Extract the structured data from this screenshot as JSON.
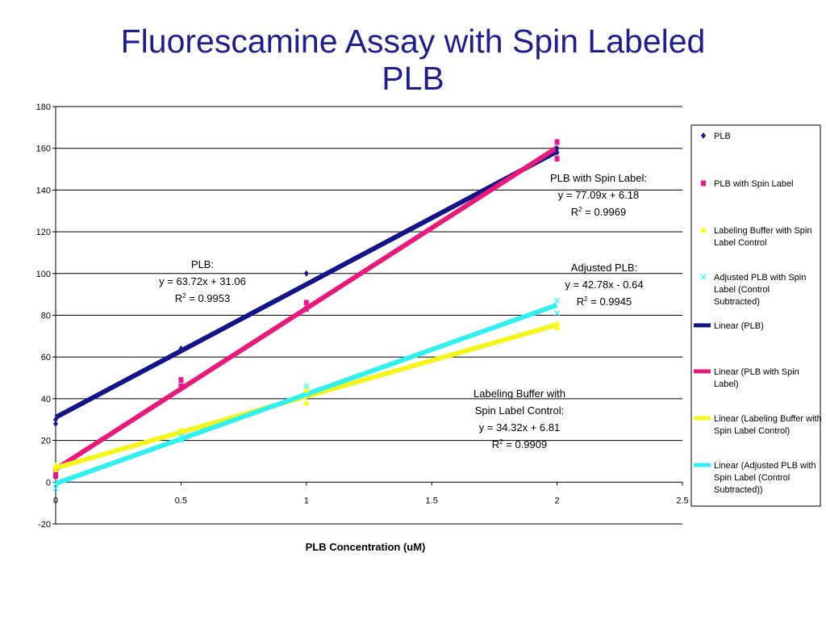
{
  "chart_data": {
    "type": "scatter",
    "title_line1": "Fluorescamine Assay with Spin Labeled",
    "title_line2": "PLB",
    "xlabel": "PLB Concentration (uM)",
    "ylabel": "",
    "xlim": [
      0,
      2.5
    ],
    "ylim": [
      -20,
      180
    ],
    "x_ticks": [
      "0",
      "0.5",
      "1",
      "1.5",
      "2",
      "2.5"
    ],
    "y_ticks": [
      "-20",
      "0",
      "20",
      "40",
      "60",
      "80",
      "100",
      "120",
      "140",
      "160",
      "180"
    ],
    "grid": "horizontal",
    "legend_position": "right",
    "series": [
      {
        "name": "PLB",
        "color": "#1a1a8c",
        "marker": "diamond",
        "points": [
          [
            0,
            28
          ],
          [
            0,
            30
          ],
          [
            0.5,
            64
          ],
          [
            1,
            100
          ],
          [
            2,
            158
          ],
          [
            2,
            160
          ]
        ]
      },
      {
        "name": "PLB with Spin Label",
        "color": "#e8198c",
        "marker": "square",
        "points": [
          [
            0,
            3
          ],
          [
            0,
            5
          ],
          [
            0.5,
            46
          ],
          [
            0.5,
            49
          ],
          [
            1,
            83
          ],
          [
            1,
            86
          ],
          [
            2,
            155
          ],
          [
            2,
            163
          ]
        ]
      },
      {
        "name": "Labeling Buffer with Spin Label Control",
        "color": "#ffff00",
        "marker": "triangle",
        "points": [
          [
            0,
            6
          ],
          [
            0,
            8
          ],
          [
            0.5,
            25
          ],
          [
            1,
            38
          ],
          [
            1,
            44
          ],
          [
            2,
            74
          ],
          [
            2,
            76
          ]
        ]
      },
      {
        "name": "Adjusted PLB with Spin Label (Control Subtracted)",
        "color": "#33ffff",
        "marker": "x",
        "points": [
          [
            0,
            -3
          ],
          [
            0,
            -1
          ],
          [
            0.5,
            20
          ],
          [
            0.5,
            22
          ],
          [
            1,
            42
          ],
          [
            1,
            46
          ],
          [
            2,
            81
          ],
          [
            2,
            87
          ]
        ]
      }
    ],
    "trendlines": [
      {
        "name": "Linear (PLB)",
        "color": "#14148a",
        "slope": 63.72,
        "intercept": 31.06
      },
      {
        "name": "Linear (PLB with Spin Label)",
        "color": "#e8197a",
        "slope": 77.09,
        "intercept": 6.18
      },
      {
        "name": "Linear (Labeling Buffer with Spin Label Control)",
        "color": "#f5f51e",
        "slope": 34.32,
        "intercept": 6.81
      },
      {
        "name": "Linear (Adjusted PLB with Spin Label (Control Subtracted))",
        "color": "#33f0f0",
        "slope": 42.78,
        "intercept": -0.64
      }
    ],
    "legend": [
      {
        "label": "PLB",
        "kind": "marker",
        "marker": "diamond",
        "color": "#1a1a8c",
        "lines": [
          "PLB"
        ]
      },
      {
        "label": "PLB with Spin Label",
        "kind": "marker",
        "marker": "square",
        "color": "#e8198c",
        "lines": [
          "PLB with Spin Label"
        ]
      },
      {
        "label": "Labeling Buffer with Spin Label Control",
        "kind": "marker",
        "marker": "triangle",
        "color": "#ffff00",
        "lines": [
          "Labeling Buffer with Spin",
          "Label Control"
        ]
      },
      {
        "label": "Adjusted PLB with Spin Label (Control Subtracted)",
        "kind": "marker",
        "marker": "x",
        "color": "#33ffff",
        "lines": [
          "Adjusted PLB with Spin",
          "Label (Control",
          "Subtracted)"
        ]
      },
      {
        "label": "Linear (PLB)",
        "kind": "line",
        "color": "#14148a",
        "lines": [
          "Linear (PLB)"
        ]
      },
      {
        "label": "Linear (PLB with Spin Label)",
        "kind": "line",
        "color": "#e8197a",
        "lines": [
          "Linear (PLB with Spin",
          "Label)"
        ]
      },
      {
        "label": "Linear (Labeling Buffer with Spin Label Control)",
        "kind": "line",
        "color": "#f5f51e",
        "lines": [
          "Linear (Labeling Buffer with",
          "Spin Label Control)"
        ]
      },
      {
        "label": "Linear (Adjusted PLB with Spin Label (Control Subtracted))",
        "kind": "line",
        "color": "#33f0f0",
        "lines": [
          "Linear (Adjusted PLB with",
          "Spin Label (Control",
          "Subtracted))"
        ]
      }
    ],
    "annotations": [
      {
        "series": "PLB",
        "lines": [
          "PLB:",
          "y = 63.72x + 31.06",
          "R2 = 0.9953"
        ]
      },
      {
        "series": "PLB with Spin Label",
        "lines": [
          "PLB with Spin Label:",
          "y = 77.09x + 6.18",
          "R2 = 0.9969"
        ]
      },
      {
        "series": "Adjusted PLB",
        "lines": [
          "Adjusted PLB:",
          "y = 42.78x - 0.64",
          "R2 = 0.9945"
        ]
      },
      {
        "series": "Labeling Buffer",
        "lines": [
          "Labeling Buffer with",
          "Spin Label Control:",
          "y = 34.32x + 6.81",
          "R2 = 0.9909"
        ]
      }
    ]
  }
}
